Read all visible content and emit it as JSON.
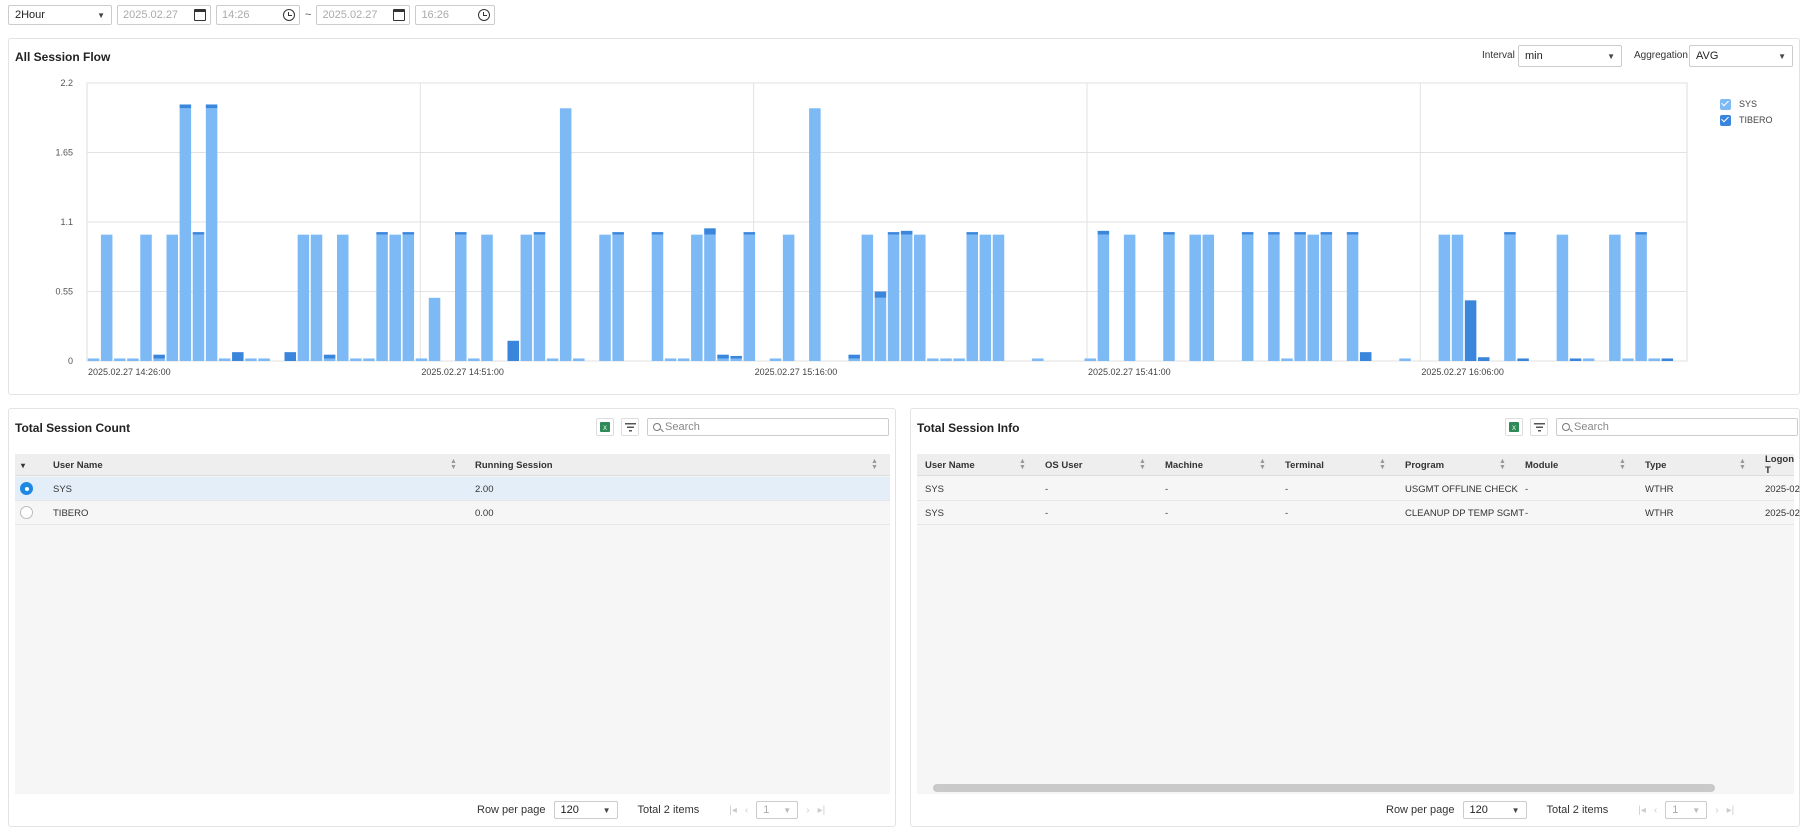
{
  "topbar": {
    "range_value": "2Hour",
    "start_date": "2025.02.27",
    "start_time": "14:26",
    "separator": "~",
    "end_date": "2025.02.27",
    "end_time": "16:26"
  },
  "flow": {
    "title": "All Session Flow",
    "interval_label": "Interval",
    "interval_value": "min",
    "aggregation_label": "Aggregation",
    "aggregation_value": "AVG"
  },
  "colors": {
    "sys": "#7db9f5",
    "tibero": "#3a86dc",
    "accent": "#1e88e5"
  },
  "chart_data": {
    "type": "bar",
    "stacked": true,
    "ylim": [
      0,
      2.2
    ],
    "yticks": [
      "0",
      "0.55",
      "1.1",
      "1.65",
      "2.2"
    ],
    "xtick_labels": [
      "2025.02.27 14:26:00",
      "2025.02.27 14:51:00",
      "2025.02.27 15:16:00",
      "2025.02.27 15:41:00",
      "2025.02.27 16:06:00"
    ],
    "x_start": "2025.02.27 14:26:00",
    "x_end": "2025.02.27 16:26:00",
    "legend_position": "top-right",
    "series": [
      {
        "name": "SYS",
        "values": [
          0.02,
          1.0,
          0.02,
          0.02,
          1.0,
          0.02,
          1.0,
          2.0,
          1.0,
          2.0,
          0.02,
          0.0,
          0.02,
          0.02,
          0.0,
          0.0,
          1.0,
          1.0,
          0.02,
          1.0,
          0.02,
          0.02,
          1.0,
          1.0,
          1.0,
          0.02,
          0.5,
          0.0,
          1.0,
          0.02,
          1.0,
          0.0,
          0.0,
          1.0,
          1.0,
          0.02,
          2.0,
          0.02,
          0.0,
          1.0,
          1.0,
          0.0,
          0.0,
          1.0,
          0.02,
          0.02,
          1.0,
          1.0,
          0.02,
          0.02,
          1.0,
          0.0,
          0.02,
          1.0,
          0.0,
          2.0,
          0.0,
          0.0,
          0.02,
          1.0,
          0.5,
          1.0,
          1.0,
          1.0,
          0.02,
          0.02,
          0.02,
          1.0,
          1.0,
          1.0,
          0.0,
          0.0,
          0.02,
          0.0,
          0.0,
          0.0,
          0.02,
          1.0,
          0.0,
          1.0,
          0.0,
          0.0,
          1.0,
          0.0,
          1.0,
          1.0,
          0.0,
          0.0,
          1.0,
          0.0,
          1.0,
          0.02,
          1.0,
          1.0,
          1.0,
          0.0,
          1.0,
          0.0,
          0.0,
          0.0,
          0.02,
          0.0,
          0.0,
          1.0,
          1.0,
          0.0,
          0.0,
          0.0,
          1.0,
          0.0,
          0.0,
          0.0,
          1.0,
          0.0,
          0.02,
          0.0,
          1.0,
          0.02,
          1.0,
          0.02
        ]
      },
      {
        "name": "TIBERO",
        "values": [
          0,
          0,
          0,
          0,
          0,
          0.03,
          0,
          0.03,
          0.02,
          0.03,
          0,
          0.07,
          0,
          0,
          0,
          0.07,
          0,
          0,
          0.03,
          0,
          0,
          0,
          0.02,
          0,
          0.02,
          0,
          0,
          0,
          0.02,
          0,
          0,
          0,
          0.16,
          0,
          0.02,
          0,
          0,
          0,
          0,
          0,
          0.02,
          0,
          0,
          0.02,
          0,
          0,
          0,
          0.05,
          0.03,
          0.02,
          0.02,
          0,
          0,
          0,
          0,
          0,
          0,
          0,
          0.03,
          0,
          0.05,
          0.02,
          0.03,
          0,
          0,
          0,
          0,
          0.02,
          0,
          0,
          0,
          0,
          0,
          0,
          0,
          0,
          0,
          0.03,
          0,
          0,
          0,
          0,
          0.02,
          0,
          0,
          0,
          0,
          0,
          0.02,
          0,
          0.02,
          0,
          0.02,
          0,
          0.02,
          0,
          0.02,
          0.07,
          0,
          0,
          0,
          0,
          0,
          0,
          0,
          0.48,
          0.03,
          0,
          0.02,
          0.02,
          0,
          0,
          0,
          0.02,
          0,
          0,
          0,
          0,
          0.02,
          0,
          0.02,
          0
        ]
      }
    ]
  },
  "count_panel": {
    "title": "Total Session Count",
    "columns": [
      "User Name",
      "Running Session"
    ],
    "rows": [
      {
        "user": "SYS",
        "running": "2.00",
        "selected": true
      },
      {
        "user": "TIBERO",
        "running": "0.00",
        "selected": false
      }
    ],
    "search_placeholder": "Search",
    "row_per_page_label": "Row per page",
    "row_per_page_value": "120",
    "total_label": "Total 2 items",
    "page_value": "1"
  },
  "info_panel": {
    "title": "Total Session Info",
    "columns": [
      "User Name",
      "OS User",
      "Machine",
      "Terminal",
      "Program",
      "Module",
      "Type",
      "Logon T"
    ],
    "rows": [
      [
        "SYS",
        "-",
        "-",
        "-",
        "USGMT OFFLINE CHECK",
        "-",
        "WTHR",
        "2025-02"
      ],
      [
        "SYS",
        "-",
        "-",
        "-",
        "CLEANUP DP TEMP SGMT",
        "-",
        "WTHR",
        "2025-02"
      ]
    ],
    "search_placeholder": "Search",
    "row_per_page_label": "Row per page",
    "row_per_page_value": "120",
    "total_label": "Total 2 items",
    "page_value": "1"
  }
}
